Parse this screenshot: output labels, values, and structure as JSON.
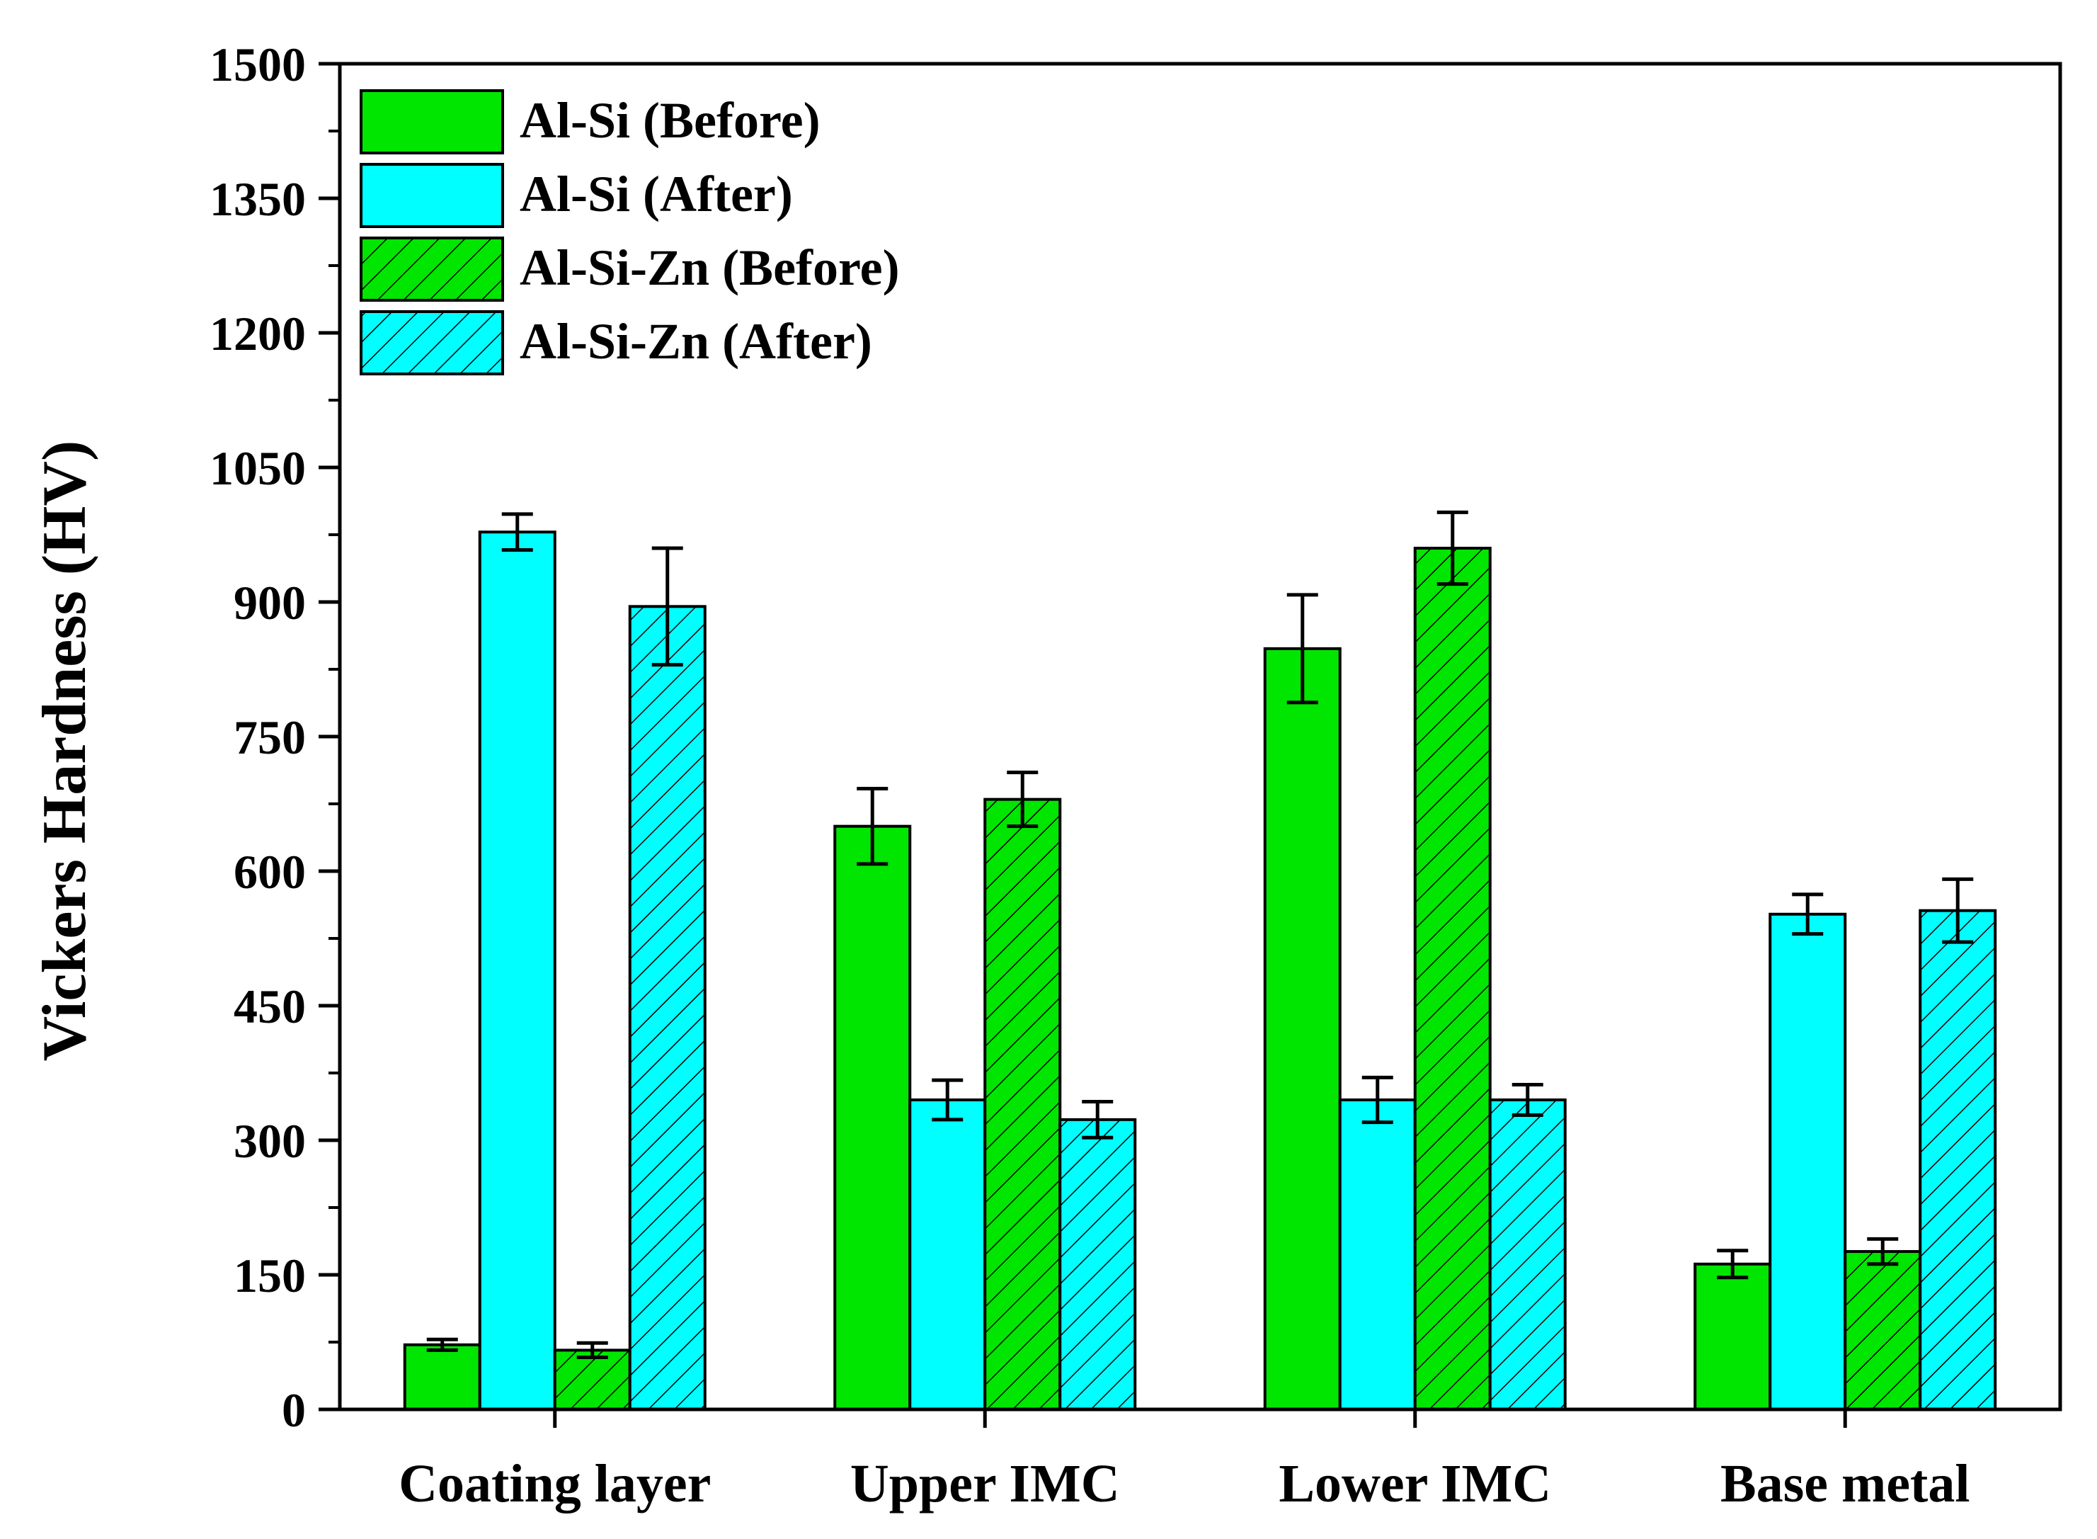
{
  "chart_data": {
    "type": "bar",
    "title": "",
    "xlabel": "",
    "ylabel": "Vickers Hardness (HV)",
    "ylim": [
      0,
      1500
    ],
    "yticks": [
      "0",
      "150",
      "300",
      "450",
      "600",
      "750",
      "900",
      "1050",
      "1200",
      "1350",
      "1500"
    ],
    "ytick_values": [
      0,
      150,
      300,
      450,
      600,
      750,
      900,
      1050,
      1200,
      1350,
      1500
    ],
    "categories": [
      "Coating layer",
      "Upper IMC",
      "Lower IMC",
      "Base metal"
    ],
    "legend_position": "top-left",
    "grid": false,
    "series": [
      {
        "name": "Al-Si (Before)",
        "color": "#00e600",
        "hatch": false,
        "values": [
          72,
          650,
          848,
          162
        ],
        "errors": [
          6,
          42,
          60,
          15
        ]
      },
      {
        "name": "Al-Si (After)",
        "color": "#00ffff",
        "hatch": false,
        "values": [
          978,
          345,
          345,
          552
        ],
        "errors": [
          20,
          22,
          25,
          22
        ]
      },
      {
        "name": "Al-Si-Zn (Before)",
        "color": "#00e600",
        "hatch": true,
        "values": [
          66,
          680,
          960,
          176
        ],
        "errors": [
          8,
          30,
          40,
          14
        ]
      },
      {
        "name": "Al-Si-Zn (After)",
        "color": "#00ffff",
        "hatch": true,
        "values": [
          895,
          323,
          345,
          556
        ],
        "errors": [
          65,
          20,
          17,
          35
        ]
      }
    ]
  }
}
